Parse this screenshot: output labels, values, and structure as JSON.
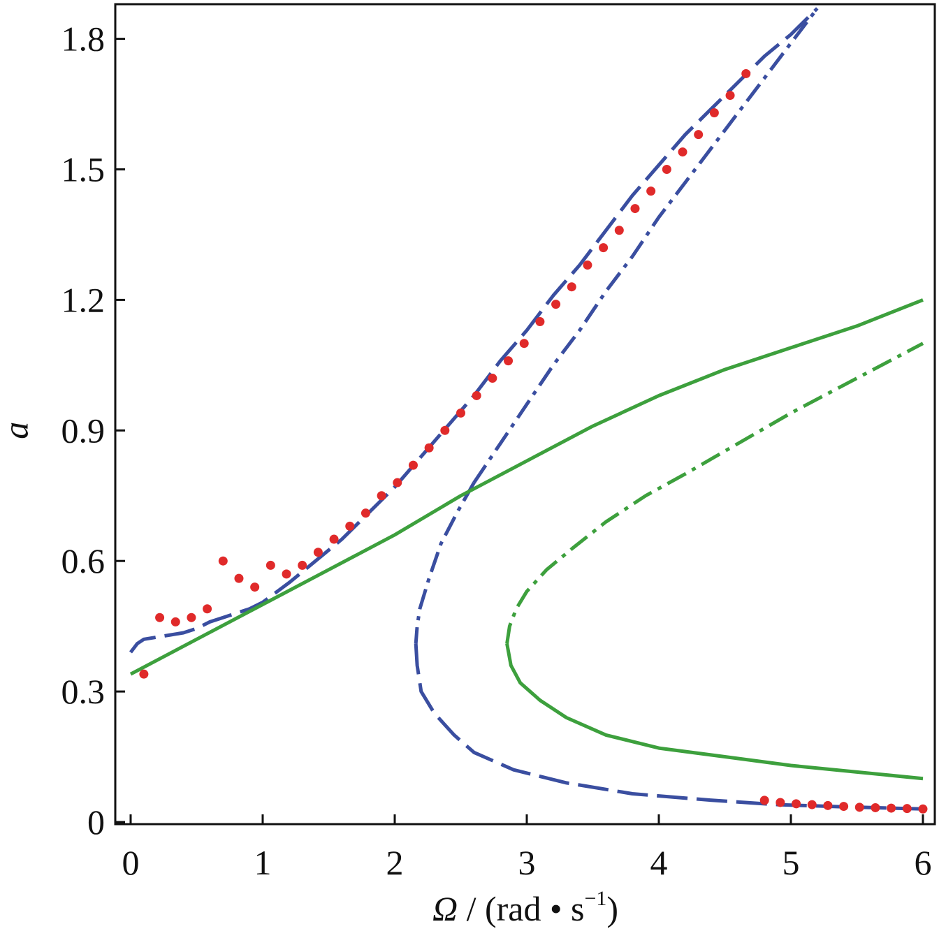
{
  "chart_data": {
    "type": "line",
    "xlabel": {
      "symbol": "Ω",
      "unit_open": " / (rad • s",
      "unit_exp": "−1",
      "unit_close": ")"
    },
    "ylabel": "a",
    "xlim": [
      -0.1,
      6.1
    ],
    "ylim": [
      -0.03,
      1.88
    ],
    "xticks": [
      "0",
      "1",
      "2",
      "3",
      "4",
      "5",
      "6"
    ],
    "yticks": [
      "0",
      "0.3",
      "0.6",
      "0.9",
      "1.2",
      "1.5",
      "1.8"
    ],
    "grid": false,
    "colors": {
      "blue": "#3a4ea0",
      "green": "#3da03d",
      "red": "#e02a2a",
      "axis": "#111111"
    },
    "series": [
      {
        "style": "blue-long-dash",
        "x": [
          0.0,
          0.05,
          0.1,
          0.2,
          0.3,
          0.4,
          0.5,
          0.6,
          0.7,
          0.8,
          0.9,
          1.0,
          1.2,
          1.4,
          1.6,
          1.8,
          2.0,
          2.2,
          2.4,
          2.6,
          2.8,
          3.0,
          3.2,
          3.4,
          3.6,
          3.8,
          4.0,
          4.2,
          4.4,
          4.6,
          4.8,
          5.0,
          5.2
        ],
        "y": [
          0.39,
          0.41,
          0.42,
          0.425,
          0.43,
          0.435,
          0.445,
          0.46,
          0.47,
          0.48,
          0.49,
          0.505,
          0.55,
          0.6,
          0.65,
          0.71,
          0.77,
          0.84,
          0.91,
          0.98,
          1.06,
          1.13,
          1.21,
          1.28,
          1.36,
          1.44,
          1.51,
          1.58,
          1.64,
          1.7,
          1.76,
          1.81,
          1.87
        ]
      },
      {
        "style": "blue-dash-dot",
        "x": [
          2.6,
          2.8,
          3.0,
          3.2,
          3.4,
          3.6,
          3.8,
          4.0,
          4.2,
          4.4,
          4.6,
          4.8,
          5.0,
          5.2
        ],
        "y": [
          0.78,
          0.87,
          0.96,
          1.05,
          1.13,
          1.22,
          1.3,
          1.39,
          1.47,
          1.55,
          1.63,
          1.71,
          1.79,
          1.87
        ]
      },
      {
        "style": "blue-dash-dot",
        "x": [
          2.6,
          2.47,
          2.35,
          2.26,
          2.19,
          2.17,
          2.16
        ],
        "y": [
          0.78,
          0.71,
          0.64,
          0.56,
          0.49,
          0.45,
          0.41
        ]
      },
      {
        "style": "blue-long-dash",
        "x": [
          2.16,
          2.17,
          2.2,
          2.3,
          2.45,
          2.6,
          2.9,
          3.3,
          3.8,
          4.4,
          4.9,
          5.4,
          6.0
        ],
        "y": [
          0.41,
          0.36,
          0.3,
          0.25,
          0.2,
          0.16,
          0.12,
          0.09,
          0.065,
          0.05,
          0.04,
          0.035,
          0.03
        ]
      },
      {
        "style": "green-solid",
        "x": [
          0.0,
          0.5,
          1.0,
          1.5,
          2.0,
          2.5,
          3.0,
          3.5,
          4.0,
          4.5,
          5.0,
          5.5,
          6.0
        ],
        "y": [
          0.34,
          0.42,
          0.5,
          0.58,
          0.66,
          0.75,
          0.83,
          0.91,
          0.98,
          1.04,
          1.09,
          1.14,
          1.2
        ]
      },
      {
        "style": "green-dash-dot",
        "x": [
          2.85,
          2.87,
          2.92,
          3.0,
          3.15,
          3.35,
          3.6,
          3.9,
          4.2,
          4.6,
          5.0,
          5.5,
          6.0
        ],
        "y": [
          0.41,
          0.45,
          0.49,
          0.53,
          0.58,
          0.63,
          0.69,
          0.75,
          0.8,
          0.87,
          0.94,
          1.02,
          1.1
        ]
      },
      {
        "style": "green-solid",
        "x": [
          2.85,
          2.88,
          2.95,
          3.1,
          3.3,
          3.6,
          4.0,
          4.5,
          5.0,
          5.5,
          6.0
        ],
        "y": [
          0.41,
          0.36,
          0.32,
          0.28,
          0.24,
          0.2,
          0.17,
          0.15,
          0.13,
          0.115,
          0.1
        ]
      }
    ],
    "points": {
      "style": "red-dots",
      "x": [
        0.1,
        0.22,
        0.34,
        0.46,
        0.58,
        0.7,
        0.82,
        0.94,
        1.06,
        1.18,
        1.3,
        1.42,
        1.54,
        1.66,
        1.78,
        1.9,
        2.02,
        2.14,
        2.26,
        2.38,
        2.5,
        2.62,
        2.74,
        2.86,
        2.98,
        3.1,
        3.22,
        3.34,
        3.46,
        3.58,
        3.7,
        3.82,
        3.94,
        4.06,
        4.18,
        4.3,
        4.42,
        4.54,
        4.66,
        4.8,
        4.92,
        5.04,
        5.16,
        5.28,
        5.4,
        5.52,
        5.64,
        5.76,
        5.88,
        6.0
      ],
      "y": [
        0.34,
        0.47,
        0.46,
        0.47,
        0.49,
        0.6,
        0.56,
        0.54,
        0.59,
        0.57,
        0.59,
        0.62,
        0.65,
        0.68,
        0.71,
        0.75,
        0.78,
        0.82,
        0.86,
        0.9,
        0.94,
        0.98,
        1.02,
        1.06,
        1.1,
        1.15,
        1.19,
        1.23,
        1.28,
        1.32,
        1.36,
        1.41,
        1.45,
        1.5,
        1.54,
        1.58,
        1.63,
        1.67,
        1.72,
        0.05,
        0.045,
        0.042,
        0.04,
        0.038,
        0.036,
        0.034,
        0.033,
        0.032,
        0.031,
        0.03
      ]
    }
  }
}
